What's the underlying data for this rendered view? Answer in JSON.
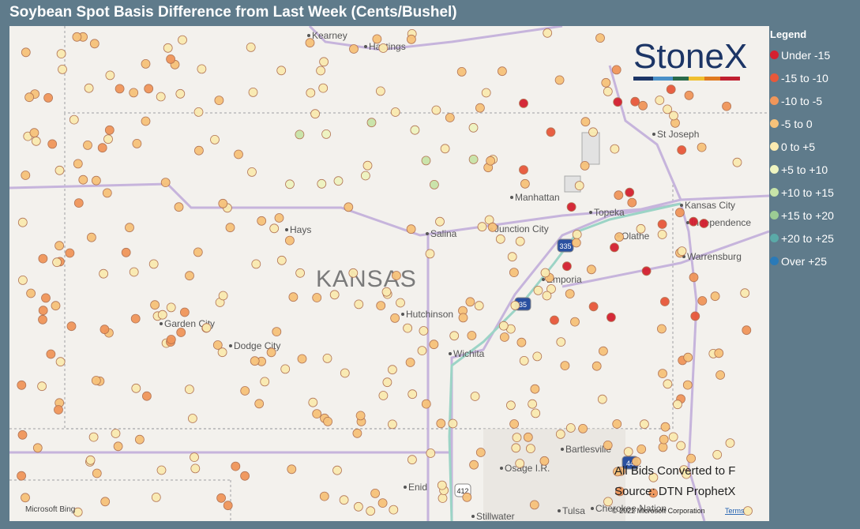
{
  "header": {
    "title": "Soybean Spot Basis Difference from Last Week (Cents/Bushel)"
  },
  "legend": {
    "title": "Legend",
    "items": [
      {
        "label": "Under -15",
        "color": "#d42030"
      },
      {
        "label": "-15 to -10",
        "color": "#e8583a"
      },
      {
        "label": "-10 to -5",
        "color": "#f0965a"
      },
      {
        "label": "-5 to 0",
        "color": "#f7c27a"
      },
      {
        "label": "0 to +5",
        "color": "#faeab0"
      },
      {
        "label": "+5 to +10",
        "color": "#eef4c0"
      },
      {
        "label": "+10 to +15",
        "color": "#c8e4a8"
      },
      {
        "label": "+15 to +20",
        "color": "#9ccc94"
      },
      {
        "label": "+20 to +25",
        "color": "#5aaaa8"
      },
      {
        "label": "Over +25",
        "color": "#2a7ab8"
      }
    ]
  },
  "map": {
    "state_label": "KANSAS",
    "cities": [
      "Kearney",
      "Hastings",
      "St Joseph",
      "Manhattan",
      "Topeka",
      "Kansas City",
      "Independence",
      "Junction City",
      "Salina",
      "Hays",
      "Olathe",
      "Warrensburg",
      "Emporia",
      "Hutchinson",
      "Garden City",
      "Dodge City",
      "Wichita",
      "Bartlesville",
      "Osage I.R.",
      "Enid",
      "Tulsa",
      "Cherokee Nation",
      "Stillwater"
    ],
    "shields": [
      "335",
      "35",
      "412",
      "44"
    ],
    "notes": [
      "All Bids Converted to F",
      "Source: DTN ProphetX"
    ],
    "logo": "StoneX",
    "attribution": {
      "provider": "Microsoft Bing",
      "copyright": "© 2022 Microsoft Corporation",
      "terms": "Terms"
    }
  }
}
